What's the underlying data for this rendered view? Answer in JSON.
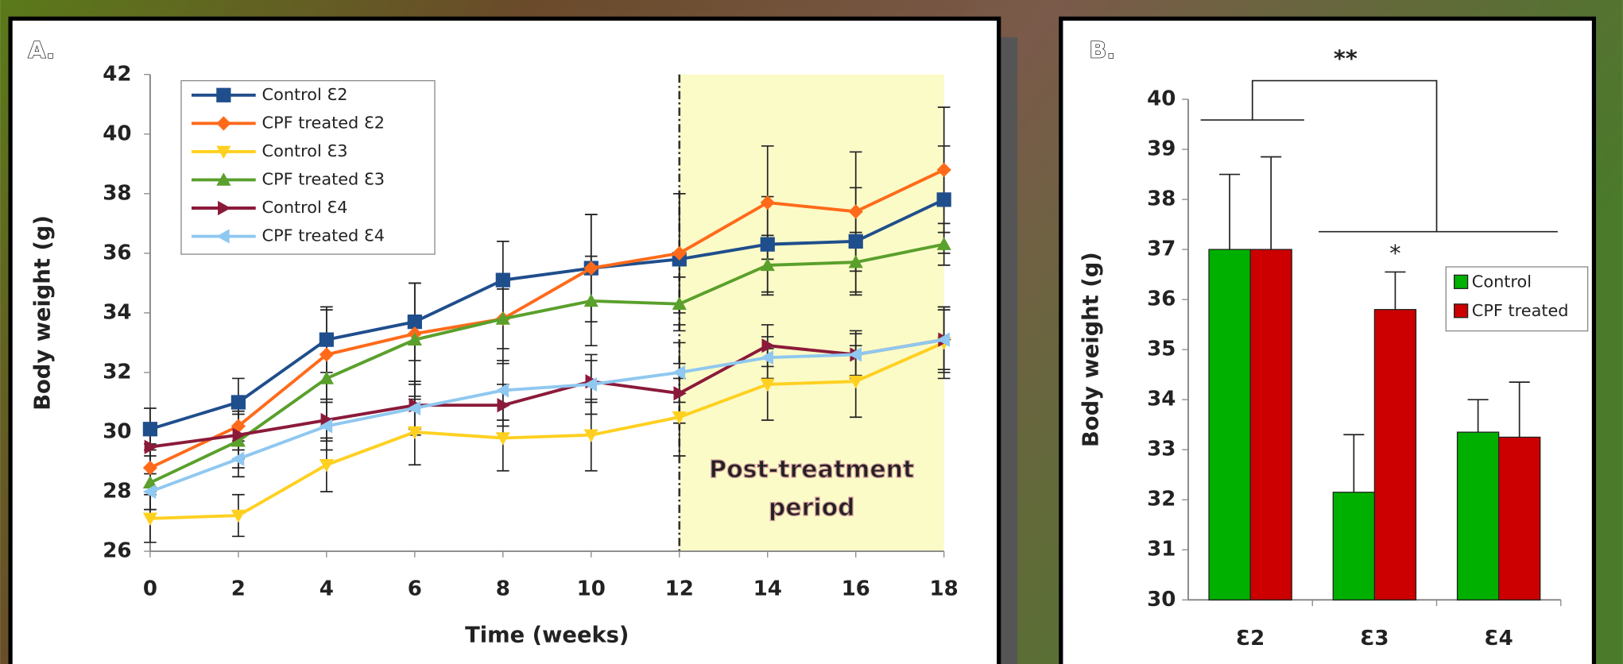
{
  "chart_data": [
    {
      "type": "line",
      "panel_label": "A.",
      "x_label": "Time (weeks)",
      "y_label": "Body weight (g)",
      "x": [
        0,
        2,
        4,
        6,
        8,
        10,
        12,
        14,
        16,
        18
      ],
      "xlim": [
        0,
        18
      ],
      "xticks": [
        0,
        2,
        4,
        6,
        8,
        10,
        12,
        14,
        16,
        18
      ],
      "ylim": [
        26,
        42
      ],
      "yticks": [
        26,
        28,
        30,
        32,
        34,
        36,
        38,
        40,
        42
      ],
      "shaded_x": [
        12,
        18
      ],
      "shade_color": "#fbfbc8",
      "annotation_lines": [
        "Post-treatment",
        "period"
      ],
      "legend": "top-left",
      "series": [
        {
          "name": "Control Ɛ2",
          "color": "#1f4e8c",
          "marker": "square",
          "values": [
            30.1,
            31.0,
            33.1,
            33.7,
            35.1,
            35.5,
            35.8,
            36.3,
            36.4,
            37.8
          ],
          "errors": [
            0.7,
            0.8,
            1.1,
            1.3,
            1.3,
            1.8,
            2.2,
            1.6,
            1.8,
            1.8
          ]
        },
        {
          "name": "CPF treated Ɛ2",
          "color": "#ff6a1a",
          "marker": "diamond",
          "values": [
            28.8,
            30.2,
            32.6,
            33.3,
            33.8,
            35.5,
            36.0,
            37.7,
            37.4,
            38.8
          ],
          "errors": [
            0.8,
            0.8,
            1.5,
            1.7,
            1.0,
            1.8,
            2.0,
            1.9,
            2.0,
            2.1
          ]
        },
        {
          "name": "Control Ɛ3",
          "color": "#ffd020",
          "marker": "down",
          "values": [
            27.1,
            27.2,
            28.9,
            30.0,
            29.8,
            29.9,
            30.5,
            31.6,
            31.7,
            33.0
          ],
          "errors": [
            0.8,
            0.7,
            0.9,
            1.1,
            1.1,
            1.2,
            1.3,
            1.2,
            1.2,
            1.2
          ]
        },
        {
          "name": "CPF treated Ɛ3",
          "color": "#5aa02c",
          "marker": "up",
          "values": [
            28.3,
            29.7,
            31.8,
            33.1,
            33.8,
            34.4,
            34.3,
            35.6,
            35.7,
            36.3
          ],
          "errors": [
            0.9,
            0.9,
            1.4,
            1.9,
            1.5,
            1.5,
            0.9,
            1.0,
            1.0,
            0.7
          ]
        },
        {
          "name": "Control Ɛ4",
          "color": "#8b1a3a",
          "marker": "right",
          "values": [
            29.5,
            29.9,
            30.4,
            30.9,
            30.9,
            31.7,
            31.3,
            32.9,
            32.6,
            33.1
          ],
          "errors": [
            0.7,
            0.8,
            0.7,
            0.8,
            0.7,
            0.7,
            1.0,
            0.7,
            0.8,
            1.1
          ]
        },
        {
          "name": "CPF treated Ɛ4",
          "color": "#8fc8f0",
          "marker": "left",
          "values": [
            28.0,
            29.1,
            30.2,
            30.8,
            31.4,
            31.6,
            32.0,
            32.5,
            32.6,
            33.1
          ],
          "errors": [
            0.6,
            0.6,
            0.8,
            0.9,
            1.0,
            1.0,
            1.0,
            0.7,
            0.7,
            1.0
          ]
        }
      ]
    },
    {
      "type": "bar",
      "panel_label": "B.",
      "y_label": "Body weight (g)",
      "categories": [
        "Ɛ2",
        "Ɛ3",
        "Ɛ4"
      ],
      "ylim": [
        30,
        40
      ],
      "yticks": [
        30,
        31,
        32,
        33,
        34,
        35,
        36,
        37,
        38,
        39,
        40
      ],
      "legend": "right",
      "series": [
        {
          "name": "Control",
          "color": "#00b000",
          "values": [
            37.0,
            32.15,
            33.35
          ],
          "errors": [
            1.5,
            1.15,
            0.65
          ]
        },
        {
          "name": "CPF treated",
          "color": "#cc0000",
          "values": [
            37.0,
            35.8,
            33.25
          ],
          "errors": [
            1.85,
            0.75,
            1.1
          ]
        }
      ],
      "annotations": [
        "**",
        "*"
      ]
    }
  ]
}
